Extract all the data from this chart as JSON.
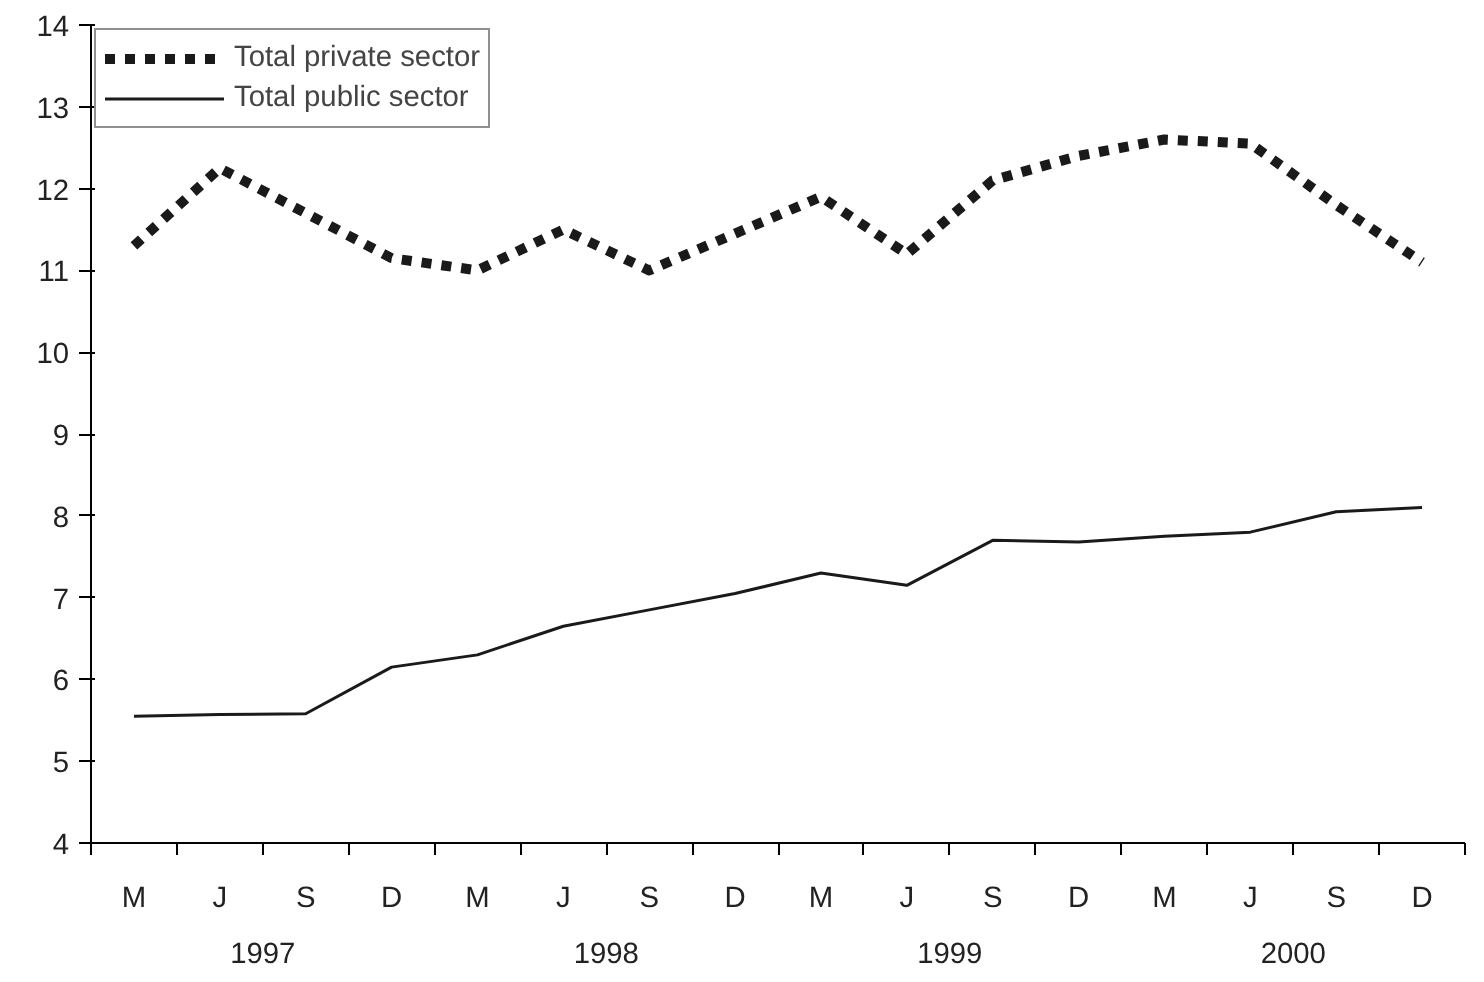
{
  "chart_data": {
    "type": "line",
    "categories": [
      "M",
      "J",
      "S",
      "D",
      "M",
      "J",
      "S",
      "D",
      "M",
      "J",
      "S",
      "D",
      "M",
      "J",
      "S",
      "D"
    ],
    "annotations": [
      "1997",
      "1998",
      "1999",
      "2000"
    ],
    "series": [
      {
        "name": "Total private sector",
        "color": "#1a1a1a",
        "line_style": "dotted",
        "values": [
          11.3,
          12.25,
          11.7,
          11.15,
          11.0,
          11.5,
          11.0,
          11.45,
          11.9,
          11.2,
          12.1,
          12.4,
          12.6,
          12.55,
          11.8,
          11.1
        ]
      },
      {
        "name": "Total public sector",
        "color": "#1a1a1a",
        "line_style": "solid",
        "values": [
          5.55,
          5.57,
          5.58,
          6.15,
          6.3,
          6.65,
          6.85,
          7.05,
          7.3,
          7.15,
          7.7,
          7.68,
          7.75,
          7.8,
          8.05,
          8.1
        ]
      }
    ],
    "ylim": [
      4,
      14
    ],
    "yticks": [
      4,
      5,
      6,
      7,
      8,
      9,
      10,
      11,
      12,
      13,
      14
    ],
    "grid": false,
    "legend": "top left",
    "marker": "none"
  }
}
